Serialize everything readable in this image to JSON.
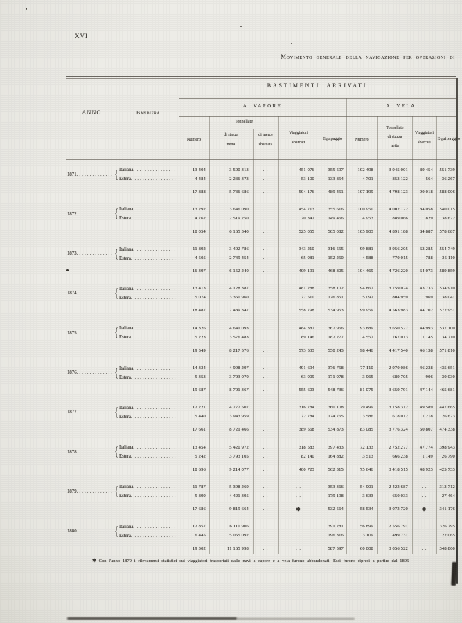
{
  "page": {
    "number": "XVI",
    "title": "Movimento generale della navigazione per operazioni di",
    "footnote_symbol": "✱",
    "footnote": "Con l'anno 1879 i rilevamenti statistici sui viaggiatori trasportati dalle navi a vapore e a vela furono abbandonati. Essi furono ripresi a partire dal 1895"
  },
  "table": {
    "col_anno": "ANNO",
    "col_bandiera": "Bandiera",
    "section_title": "BASTIMENTI ARRIVATI",
    "vapore_title": "A VAPORE",
    "vela_title": "A VELA",
    "sub": {
      "numero": "Numero",
      "tonnellate": "Tonnellate",
      "stazza_l1": "di stazza",
      "stazza_l2": "netta",
      "merce_l1": "di merce",
      "merce_l2": "sbarcata",
      "viagg_l1": "Viaggiatori",
      "viagg_l2": "sbarcati",
      "equipaggio": "Equipaggio",
      "vela_tonn_l1": "Tonnellate",
      "vela_tonn_l2": "di stazza",
      "vela_tonn_l3": "netta"
    },
    "groups": [
      {
        "year": "1871",
        "rows": [
          {
            "flag": "Italiana",
            "cells": [
              "13 404",
              "3 500 313",
              "..",
              "451 076",
              "355 597",
              "102 498",
              "3 945 001",
              "89 454",
              "551 739"
            ]
          },
          {
            "flag": "Estera",
            "cells": [
              "4 484",
              "2 236 373",
              "..",
              "53 100",
              "133 854",
              "4 701",
              "853 122",
              "564",
              "36 267"
            ]
          }
        ],
        "total": [
          "17 888",
          "5 736 686",
          "..",
          "504 176",
          "489 451",
          "107 199",
          "4 798 123",
          "90 018",
          "588 006"
        ]
      },
      {
        "year": "1872",
        "rows": [
          {
            "flag": "Italiana",
            "cells": [
              "13 292",
              "3 646 090",
              "..",
              "454 713",
              "355 616",
              "100 950",
              "4 002 122",
              "84 058",
              "540 015"
            ]
          },
          {
            "flag": "Estera",
            "cells": [
              "4 762",
              "2 519 250",
              "..",
              "70 342",
              "149 466",
              "4 953",
              "889 066",
              "829",
              "38 672"
            ]
          }
        ],
        "total": [
          "18 054",
          "6 165 340",
          "..",
          "525 055",
          "505 082",
          "105 903",
          "4 891 188",
          "84 887",
          "578 687"
        ]
      },
      {
        "year": "1873",
        "rows": [
          {
            "flag": "Italiana",
            "cells": [
              "11 892",
              "3 402 786",
              "..",
              "343 210",
              "316 555",
              "99 881",
              "3 956 205",
              "63 285",
              "554 749"
            ]
          },
          {
            "flag": "Estera",
            "cells": [
              "4 505",
              "2 749 454",
              "..",
              "65 981",
              "152 250",
              "4 588",
              "770 015",
              "788",
              "35 110"
            ]
          }
        ],
        "total": [
          "16 397",
          "6 152 240",
          "..",
          "409 191",
          "468 805",
          "104 469",
          "4 726 220",
          "64 073",
          "589 859"
        ]
      },
      {
        "year": "1874",
        "rows": [
          {
            "flag": "Italiana",
            "cells": [
              "13 413",
              "4 128 387",
              "..",
              "481 288",
              "358 102",
              "94 867",
              "3 759 024",
              "43 733",
              "534 910"
            ]
          },
          {
            "flag": "Estera",
            "cells": [
              "5 074",
              "3 360 960",
              "..",
              "77 510",
              "176 851",
              "5 092",
              "804 959",
              "969",
              "38 041"
            ]
          }
        ],
        "total": [
          "18 487",
          "7 489 347",
          "..",
          "558 798",
          "534 953",
          "99 959",
          "4 563 983",
          "44 702",
          "572 951"
        ]
      },
      {
        "year": "1875",
        "rows": [
          {
            "flag": "Italiana",
            "cells": [
              "14 326",
              "4 641 093",
              "..",
              "484 387",
              "367 966",
              "93 889",
              "3 650 527",
              "44 993",
              "537 100"
            ]
          },
          {
            "flag": "Estera",
            "cells": [
              "5 223",
              "3 576 483",
              "..",
              "89 146",
              "182 277",
              "4 557",
              "767 013",
              "1 145",
              "34 710"
            ]
          }
        ],
        "total": [
          "19 549",
          "8 217 576",
          "..",
          "573 533",
          "550 243",
          "98 446",
          "4 417 540",
          "46 138",
          "571 810"
        ]
      },
      {
        "year": "1876",
        "rows": [
          {
            "flag": "Italiana",
            "cells": [
              "14 334",
              "4 998 297",
              "..",
              "491 694",
              "376 758",
              "77 110",
              "2 970 086",
              "46 238",
              "435 651"
            ]
          },
          {
            "flag": "Estera",
            "cells": [
              "5 353",
              "3 703 070",
              "..",
              "63 909",
              "171 978",
              "3 965",
              "689 705",
              "906",
              "30 030"
            ]
          }
        ],
        "total": [
          "19 687",
          "8 701 367",
          "..",
          "555 603",
          "548 736",
          "81 075",
          "3 659 791",
          "47 144",
          "465 681"
        ]
      },
      {
        "year": "1877",
        "rows": [
          {
            "flag": "Italiana",
            "cells": [
              "12 221",
              "4 777 507",
              "..",
              "316 784",
              "360 108",
              "79 499",
              "3 158 312",
              "49 589",
              "447 665"
            ]
          },
          {
            "flag": "Estera",
            "cells": [
              "5 440",
              "3 943 959",
              "..",
              "72 784",
              "174 765",
              "3 586",
              "618 012",
              "1 218",
              "26 673"
            ]
          }
        ],
        "total": [
          "17 661",
          "8 721 466",
          "..",
          "389 568",
          "534 873",
          "83 085",
          "3 776 324",
          "50 807",
          "474 338"
        ]
      },
      {
        "year": "1878",
        "rows": [
          {
            "flag": "Italiana",
            "cells": [
              "13 454",
              "5 420 972",
              "..",
              "318 583",
              "397 433",
              "72 133",
              "2 752 277",
              "47 774",
              "398 943"
            ]
          },
          {
            "flag": "Estera",
            "cells": [
              "5 242",
              "3 793 105",
              "..",
              "82 140",
              "164 882",
              "3 513",
              "666 238",
              "1 149",
              "26 790"
            ]
          }
        ],
        "total": [
          "18 696",
          "9 214 077",
          "..",
          "400 723",
          "562 315",
          "75 646",
          "3 418 515",
          "48 923",
          "425 733"
        ]
      },
      {
        "year": "1879",
        "rows": [
          {
            "flag": "Italiana",
            "cells": [
              "11 787",
              "5 398 269",
              "..",
              "..",
              "353 366",
              "54 901",
              "2 422 687",
              "..",
              "313 712"
            ]
          },
          {
            "flag": "Estera",
            "cells": [
              "5 899",
              "4 421 395",
              "..",
              "..",
              "179 198",
              "3 633",
              "650 033",
              "..",
              "27 464"
            ]
          }
        ],
        "total": [
          "17 686",
          "9 819 664",
          "..",
          "✱",
          "532 564",
          "58 534",
          "3 072 720",
          "✱",
          "341 176"
        ]
      },
      {
        "year": "1880",
        "rows": [
          {
            "flag": "Italiana",
            "cells": [
              "12 857",
              "6 110 906",
              "..",
              "..",
              "391 281",
              "56 899",
              "2 556 791",
              "..",
              "326 795"
            ]
          },
          {
            "flag": "Estera",
            "cells": [
              "6 445",
              "5 055 092",
              "..",
              "..",
              "196 316",
              "3 109",
              "499 731",
              "..",
              "22 065"
            ]
          }
        ],
        "total": [
          "19 302",
          "11 165 998",
          "..",
          "..",
          "587 597",
          "60 008",
          "3 056 522",
          "..",
          "348 860"
        ]
      }
    ]
  }
}
